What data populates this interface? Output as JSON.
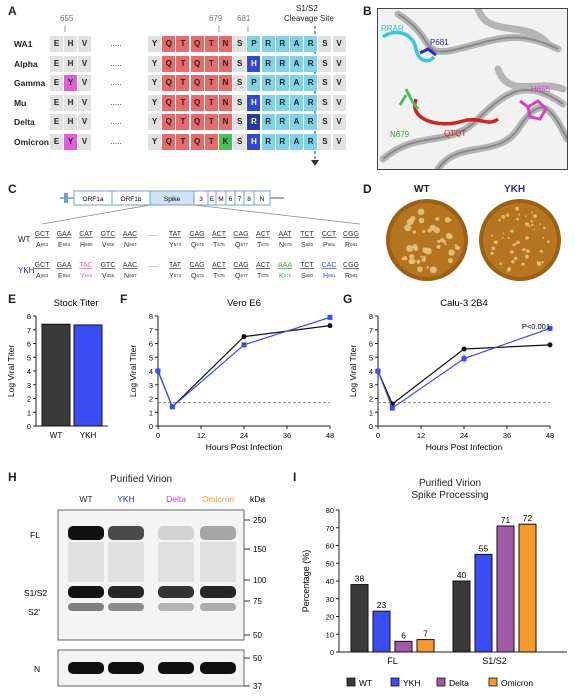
{
  "panels": {
    "A": {
      "label": "A",
      "pos_labels": [
        "655",
        "679",
        "681"
      ],
      "cleavage_label": [
        "S1/S2",
        "Cleavage Site"
      ],
      "left_cols": [
        "E",
        "H",
        "V"
      ],
      "right_cols": [
        "Y",
        "Q",
        "T",
        "Q",
        "T",
        "N",
        "S",
        "P",
        "R",
        "R",
        "A",
        "R",
        "S",
        "V"
      ],
      "variants": [
        {
          "name": "WA1",
          "left": [
            "E",
            "H",
            "V"
          ],
          "right": [
            "Y",
            "Q",
            "T",
            "Q",
            "T",
            "N",
            "S",
            "P",
            "R",
            "R",
            "A",
            "R",
            "S",
            "V"
          ]
        },
        {
          "name": "Alpha",
          "left": [
            "E",
            "H",
            "V"
          ],
          "right": [
            "Y",
            "Q",
            "T",
            "Q",
            "T",
            "N",
            "S",
            "H",
            "R",
            "R",
            "A",
            "R",
            "S",
            "V"
          ]
        },
        {
          "name": "Gamma",
          "left": [
            "E",
            "Y",
            "V"
          ],
          "right": [
            "Y",
            "Q",
            "T",
            "Q",
            "T",
            "N",
            "S",
            "P",
            "R",
            "R",
            "A",
            "R",
            "S",
            "V"
          ]
        },
        {
          "name": "Mu",
          "left": [
            "E",
            "H",
            "V"
          ],
          "right": [
            "Y",
            "Q",
            "T",
            "Q",
            "T",
            "N",
            "S",
            "H",
            "R",
            "R",
            "A",
            "R",
            "S",
            "V"
          ]
        },
        {
          "name": "Delta",
          "left": [
            "E",
            "H",
            "V"
          ],
          "right": [
            "Y",
            "Q",
            "T",
            "Q",
            "T",
            "N",
            "S",
            "R",
            "R",
            "R",
            "A",
            "R",
            "S",
            "V"
          ]
        },
        {
          "name": "Omicron",
          "left": [
            "E",
            "Y",
            "V"
          ],
          "right": [
            "Y",
            "Q",
            "T",
            "Q",
            "T",
            "K",
            "S",
            "H",
            "R",
            "R",
            "A",
            "R",
            "S",
            "V"
          ]
        }
      ]
    },
    "B": {
      "label": "B",
      "annotations": [
        "RRAR",
        "P681",
        "H655",
        "N679",
        "QTQT"
      ]
    },
    "C": {
      "label": "C",
      "genome": [
        "ORF1a",
        "ORF1b",
        "Spike",
        "3",
        "E",
        "M",
        "6",
        "7",
        "8",
        "N"
      ],
      "wt_label": "WT",
      "ykh_label": "YKH",
      "wt_codons": [
        "GCT",
        "GAA",
        "CAT",
        "GTC",
        "AAC",
        ".....",
        "TAT",
        "CAG",
        "ACT",
        "CAG",
        "ACT",
        "AAT",
        "TCT",
        "CCT",
        "CGG"
      ],
      "wt_aa": [
        "A653",
        "E654",
        "H655",
        "V656",
        "N657",
        "",
        "Y674",
        "Q675",
        "T676",
        "Q677",
        "T678",
        "N679",
        "S680",
        "P681",
        "R681"
      ],
      "ykh_codons": [
        "GCT",
        "GAA",
        "TAC",
        "GTC",
        "AAC",
        ".....",
        "TAT",
        "CAG",
        "ACT",
        "CAG",
        "ACT",
        "AAA",
        "TCT",
        "CAC",
        "CGG"
      ],
      "ykh_aa": [
        "A653",
        "E654",
        "Y655",
        "V656",
        "N657",
        "",
        "Y674",
        "Q675",
        "T676",
        "Q677",
        "T678",
        "K679",
        "S680",
        "H681",
        "R681"
      ]
    },
    "D": {
      "label": "D",
      "plates": [
        "WT",
        "YKH"
      ]
    },
    "E": {
      "label": "E",
      "title": "Stock Titer",
      "ylabel": "Log Viral Titer",
      "yticks": [
        "0",
        "1",
        "2",
        "3",
        "4",
        "5",
        "6",
        "7",
        "8"
      ]
    },
    "F": {
      "label": "F",
      "title": "Vero E6",
      "ylabel": "Log Viral Titer",
      "xlabel": "Hours Post Infection",
      "xticks": [
        "0",
        "12",
        "24",
        "36",
        "48"
      ],
      "yticks": [
        "0",
        "1",
        "2",
        "3",
        "4",
        "5",
        "6",
        "7",
        "8"
      ]
    },
    "G": {
      "label": "G",
      "title": "Calu-3 2B4",
      "ylabel": "Log Viral Titer",
      "xlabel": "Hours Post Infection",
      "xticks": [
        "0",
        "12",
        "24",
        "36",
        "48"
      ],
      "yticks": [
        "0",
        "1",
        "2",
        "3",
        "4",
        "5",
        "6",
        "7",
        "8"
      ],
      "annotation": "P<0.001"
    },
    "H": {
      "label": "H",
      "title": "Purified Virion",
      "lanes": [
        "WT",
        "YKH",
        "Delta",
        "Omicron"
      ],
      "kda_label": "kDa",
      "markers": [
        "250",
        "150",
        "100",
        "75",
        "50"
      ],
      "band_labels": [
        "FL",
        "S1/S2",
        "S2'"
      ],
      "n_label": "N",
      "n_markers": [
        "50",
        "37"
      ]
    },
    "I": {
      "label": "I",
      "title": [
        "Purified Virion",
        "Spike Processing"
      ],
      "ylabel": "Percentage (%)",
      "yticks": [
        "0",
        "10",
        "20",
        "30",
        "40",
        "50",
        "60",
        "70",
        "80"
      ]
    }
  },
  "colors": {
    "wt": "#3a3a3a",
    "ykh": "#3b4cf5",
    "delta": "#a05aa8",
    "omicron": "#f59a2c",
    "qtqtn": "#e86b6b",
    "prrar": "#7fd3e6",
    "h681": "#2f4ad6",
    "mut_y": "#e05fd8",
    "mut_k": "#4cbf5a"
  },
  "chart_data": [
    {
      "panel": "E",
      "type": "bar",
      "title": "Stock Titer",
      "ylabel": "Log Viral Titer",
      "categories": [
        "WT",
        "YKH"
      ],
      "values": [
        7.4,
        7.35
      ],
      "ylim": [
        0,
        8
      ]
    },
    {
      "panel": "F",
      "type": "line",
      "title": "Vero E6",
      "xlabel": "Hours Post Infection",
      "ylabel": "Log Viral Titer",
      "x": [
        0,
        4,
        24,
        48
      ],
      "series": [
        {
          "values": [
            4.0,
            1.4,
            6.5,
            7.3
          ]
        },
        {
          "values": [
            4.0,
            1.4,
            5.9,
            7.9
          ]
        }
      ],
      "xlim": [
        0,
        48
      ],
      "ylim": [
        0,
        8
      ],
      "limit_of_detection": 1.7
    },
    {
      "panel": "G",
      "type": "line",
      "title": "Calu-3 2B4",
      "xlabel": "Hours Post Infection",
      "ylabel": "Log Viral Titer",
      "x": [
        0,
        4,
        24,
        48
      ],
      "series": [
        {
          "values": [
            4.0,
            1.6,
            5.6,
            5.9
          ]
        },
        {
          "values": [
            4.0,
            1.3,
            4.9,
            7.1
          ]
        }
      ],
      "xlim": [
        0,
        48
      ],
      "ylim": [
        0,
        8
      ],
      "limit_of_detection": 1.7
    },
    {
      "panel": "I",
      "type": "bar",
      "title": "Purified Virion Spike Processing",
      "ylabel": "Percentage (%)",
      "categories": [
        "FL",
        "S1/S2"
      ],
      "series": [
        {
          "name": "WT",
          "values": [
            38,
            40
          ]
        },
        {
          "name": "YKH",
          "values": [
            23,
            55
          ]
        },
        {
          "name": "Delta",
          "values": [
            6,
            71
          ]
        },
        {
          "name": "Omicron",
          "values": [
            7,
            72
          ]
        }
      ],
      "ylim": [
        0,
        80
      ],
      "legend": "bottom"
    }
  ]
}
